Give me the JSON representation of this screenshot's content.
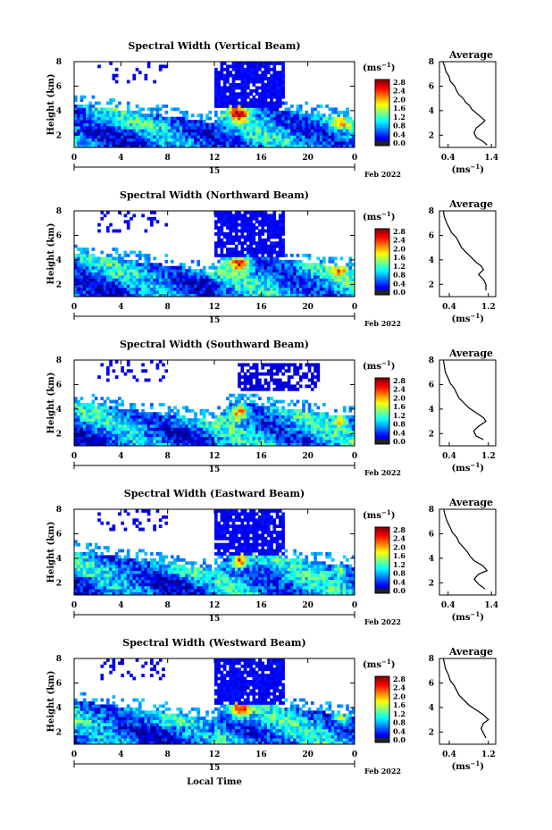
{
  "figure": {
    "xlabel_bottom": "Local Time"
  },
  "chart_data": [
    {
      "type": "heatmap",
      "title": "Spectral Width (Vertical Beam)",
      "ylabel": "Height (km)",
      "y_ticks": [
        "2",
        "4",
        "6",
        "8"
      ],
      "ylim": [
        1,
        8
      ],
      "x_ticks": [
        "0",
        "4",
        "8",
        "12",
        "16",
        "20",
        "0"
      ],
      "xlim": [
        0,
        24
      ],
      "date_tick": "15",
      "date_label": "Feb 2022",
      "colorbar": {
        "unit": "(ms⁻¹)",
        "ticks": [
          "2.8",
          "2.4",
          "2.0",
          "1.6",
          "1.2",
          "0.8",
          "0.4",
          "0.0"
        ],
        "range": [
          0,
          2.8
        ]
      },
      "profile": {
        "title": "Average",
        "xlabel": "(ms⁻¹)",
        "x_ticks": [
          "0.4",
          "1.4"
        ],
        "xlim": [
          0.2,
          1.5
        ],
        "y_ticks": [
          "2",
          "4",
          "6",
          "8"
        ],
        "ylim": [
          1,
          8
        ],
        "points": [
          [
            1.3,
            1.2
          ],
          [
            1.2,
            1.5
          ],
          [
            1.05,
            1.8
          ],
          [
            1.0,
            2.2
          ],
          [
            1.05,
            2.6
          ],
          [
            1.2,
            3.0
          ],
          [
            1.25,
            3.2
          ],
          [
            1.15,
            3.5
          ],
          [
            1.05,
            3.8
          ],
          [
            0.95,
            4.1
          ],
          [
            0.9,
            4.4
          ],
          [
            0.8,
            4.7
          ],
          [
            0.75,
            5.0
          ],
          [
            0.65,
            5.3
          ],
          [
            0.6,
            5.6
          ],
          [
            0.55,
            6.0
          ],
          [
            0.45,
            6.4
          ],
          [
            0.42,
            6.8
          ],
          [
            0.35,
            7.2
          ],
          [
            0.32,
            7.6
          ],
          [
            0.28,
            8.0
          ]
        ]
      }
    },
    {
      "type": "heatmap",
      "title": "Spectral Width (Northward Beam)",
      "ylabel": "Height (km)",
      "y_ticks": [
        "2",
        "4",
        "6",
        "8"
      ],
      "ylim": [
        1,
        8
      ],
      "x_ticks": [
        "0",
        "4",
        "8",
        "12",
        "16",
        "20",
        "0"
      ],
      "xlim": [
        0,
        24
      ],
      "date_tick": "15",
      "date_label": "Feb 2022",
      "colorbar": {
        "unit": "(ms⁻¹)",
        "ticks": [
          "2.8",
          "2.4",
          "2.0",
          "1.6",
          "1.2",
          "0.8",
          "0.4",
          "0.0"
        ],
        "range": [
          0,
          2.8
        ]
      },
      "profile": {
        "title": "Average",
        "xlabel": "(ms⁻¹)",
        "x_ticks": [
          "0.4",
          "1.2"
        ],
        "xlim": [
          0.2,
          1.35
        ],
        "y_ticks": [
          "2",
          "4",
          "6",
          "8"
        ],
        "ylim": [
          1,
          8
        ],
        "points": [
          [
            1.15,
            1.5
          ],
          [
            1.15,
            2.0
          ],
          [
            1.1,
            2.4
          ],
          [
            1.0,
            2.8
          ],
          [
            1.1,
            3.2
          ],
          [
            1.05,
            3.5
          ],
          [
            0.95,
            3.8
          ],
          [
            0.85,
            4.2
          ],
          [
            0.75,
            4.6
          ],
          [
            0.65,
            5.0
          ],
          [
            0.6,
            5.4
          ],
          [
            0.55,
            5.8
          ],
          [
            0.45,
            6.2
          ],
          [
            0.4,
            6.6
          ],
          [
            0.35,
            7.0
          ],
          [
            0.3,
            7.5
          ],
          [
            0.28,
            8.0
          ]
        ]
      }
    },
    {
      "type": "heatmap",
      "title": "Spectral Width (Southward Beam)",
      "ylabel": "Height (km)",
      "y_ticks": [
        "2",
        "4",
        "6",
        "8"
      ],
      "ylim": [
        1,
        8
      ],
      "x_ticks": [
        "0",
        "4",
        "8",
        "12",
        "16",
        "20",
        "0"
      ],
      "xlim": [
        0,
        24
      ],
      "date_tick": "15",
      "date_label": "Feb 2022",
      "colorbar": {
        "unit": "(ms⁻¹)",
        "ticks": [
          "2.8",
          "2.4",
          "2.0",
          "1.6",
          "1.2",
          "0.8",
          "0.4",
          "0.0"
        ],
        "range": [
          0,
          2.8
        ]
      },
      "profile": {
        "title": "Average",
        "xlabel": "(ms⁻¹)",
        "x_ticks": [
          "0.4",
          "1.2"
        ],
        "xlim": [
          0.2,
          1.35
        ],
        "y_ticks": [
          "2",
          "4",
          "6",
          "8"
        ],
        "ylim": [
          1,
          8
        ],
        "points": [
          [
            1.1,
            1.5
          ],
          [
            0.95,
            1.8
          ],
          [
            0.9,
            2.2
          ],
          [
            1.0,
            2.6
          ],
          [
            1.15,
            3.0
          ],
          [
            1.1,
            3.3
          ],
          [
            0.95,
            3.7
          ],
          [
            0.8,
            4.1
          ],
          [
            0.7,
            4.5
          ],
          [
            0.6,
            4.9
          ],
          [
            0.55,
            5.3
          ],
          [
            0.5,
            5.7
          ],
          [
            0.42,
            6.1
          ],
          [
            0.38,
            6.5
          ],
          [
            0.32,
            7.0
          ],
          [
            0.3,
            7.5
          ],
          [
            0.28,
            8.0
          ]
        ]
      }
    },
    {
      "type": "heatmap",
      "title": "Spectral Width (Eastward Beam)",
      "ylabel": "Height (km)",
      "y_ticks": [
        "2",
        "4",
        "6",
        "8"
      ],
      "ylim": [
        1,
        8
      ],
      "x_ticks": [
        "0",
        "4",
        "8",
        "12",
        "16",
        "20",
        "0"
      ],
      "xlim": [
        0,
        24
      ],
      "date_tick": "15",
      "date_label": "Feb 2022",
      "colorbar": {
        "unit": "(ms⁻¹)",
        "ticks": [
          "2.8",
          "2.4",
          "2.0",
          "1.6",
          "1.2",
          "0.8",
          "0.4",
          "0.0"
        ],
        "range": [
          0,
          2.8
        ]
      },
      "profile": {
        "title": "Average",
        "xlabel": "(ms⁻¹)",
        "x_ticks": [
          "0.4",
          "1.4"
        ],
        "xlim": [
          0.2,
          1.5
        ],
        "y_ticks": [
          "2",
          "4",
          "6",
          "8"
        ],
        "ylim": [
          1,
          8
        ],
        "points": [
          [
            1.25,
            1.5
          ],
          [
            1.1,
            1.9
          ],
          [
            1.0,
            2.3
          ],
          [
            1.1,
            2.7
          ],
          [
            1.3,
            3.0
          ],
          [
            1.2,
            3.4
          ],
          [
            1.0,
            3.8
          ],
          [
            0.9,
            4.2
          ],
          [
            0.85,
            4.5
          ],
          [
            0.75,
            4.9
          ],
          [
            0.65,
            5.3
          ],
          [
            0.6,
            5.7
          ],
          [
            0.5,
            6.1
          ],
          [
            0.45,
            6.5
          ],
          [
            0.38,
            7.0
          ],
          [
            0.33,
            7.5
          ],
          [
            0.3,
            8.0
          ]
        ]
      }
    },
    {
      "type": "heatmap",
      "title": "Spectral Width (Westward Beam)",
      "ylabel": "Height (km)",
      "y_ticks": [
        "2",
        "4",
        "6",
        "8"
      ],
      "ylim": [
        1,
        8
      ],
      "x_ticks": [
        "0",
        "4",
        "8",
        "12",
        "16",
        "20",
        "0"
      ],
      "xlim": [
        0,
        24
      ],
      "date_tick": "15",
      "date_label": "Feb 2022",
      "colorbar": {
        "unit": "(ms⁻¹)",
        "ticks": [
          "2.8",
          "2.4",
          "2.0",
          "1.6",
          "1.2",
          "0.8",
          "0.4",
          "0.0"
        ],
        "range": [
          0,
          2.8
        ]
      },
      "profile": {
        "title": "Average",
        "xlabel": "(ms⁻¹)",
        "x_ticks": [
          "0.4",
          "1.2"
        ],
        "xlim": [
          0.2,
          1.35
        ],
        "y_ticks": [
          "2",
          "4",
          "6",
          "8"
        ],
        "ylim": [
          1,
          8
        ],
        "points": [
          [
            1.15,
            1.5
          ],
          [
            1.1,
            1.9
          ],
          [
            1.05,
            2.3
          ],
          [
            1.1,
            2.7
          ],
          [
            1.2,
            3.0
          ],
          [
            1.1,
            3.4
          ],
          [
            0.95,
            3.8
          ],
          [
            0.8,
            4.2
          ],
          [
            0.7,
            4.6
          ],
          [
            0.6,
            5.0
          ],
          [
            0.55,
            5.4
          ],
          [
            0.5,
            5.8
          ],
          [
            0.42,
            6.2
          ],
          [
            0.38,
            6.7
          ],
          [
            0.32,
            7.2
          ],
          [
            0.3,
            7.6
          ],
          [
            0.28,
            8.0
          ]
        ]
      }
    }
  ]
}
